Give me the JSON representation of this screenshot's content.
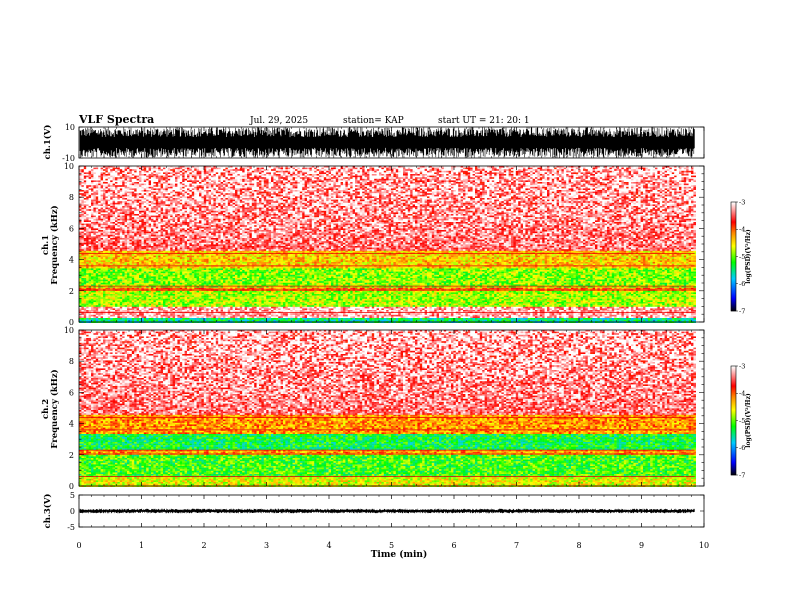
{
  "header": {
    "title": "VLF Spectra",
    "date": "Jul. 29, 2025",
    "station": "station= KAP",
    "start": "start UT =  21: 20: 1"
  },
  "colors": {
    "palette": [
      "#ffffff",
      "#ff0000",
      "#ff8800",
      "#ffff00",
      "#00ff00",
      "#00ccff",
      "#0000ff",
      "#000000"
    ],
    "trace": "#000000"
  },
  "chart_data": [
    {
      "type": "line",
      "name": "ch1-waveform",
      "ylabel": "ch.1(V)",
      "ylim": [
        -10,
        10
      ],
      "yticks": [
        "10",
        "-10"
      ],
      "description_values": {
        "amplitude_range_v": [
          -10,
          10
        ],
        "typical_envelope_v": [
          -7,
          10
        ]
      }
    },
    {
      "type": "heatmap",
      "name": "ch1-spectrogram",
      "ylabel_top": "ch.1",
      "ylabel_bottom": "Frequency (kHz)",
      "ylim": [
        0,
        10
      ],
      "yticks": [
        "0",
        "2",
        "4",
        "6",
        "8",
        "10"
      ],
      "colorbar": {
        "label": "log(PSD)(V²/Hz)",
        "ticks": [
          "-3",
          "-4",
          "-5",
          "-6",
          "-7"
        ],
        "range": [
          -7,
          -3
        ]
      },
      "bands_khz": [
        {
          "from": 0,
          "to": 0.3,
          "level": -5.5
        },
        {
          "from": 1.0,
          "to": 2.0,
          "level": -4.8
        },
        {
          "from": 2.0,
          "to": 2.3,
          "level": -4.0
        },
        {
          "from": 2.3,
          "to": 3.5,
          "level": -4.9
        },
        {
          "from": 3.5,
          "to": 4.6,
          "level": -4.4
        },
        {
          "from": 4.6,
          "to": 10,
          "level": -3.4
        }
      ]
    },
    {
      "type": "heatmap",
      "name": "ch2-spectrogram",
      "ylabel_top": "ch.2",
      "ylabel_bottom": "Frequency (kHz)",
      "ylim": [
        0,
        10
      ],
      "yticks": [
        "0",
        "2",
        "4",
        "6",
        "8",
        "10"
      ],
      "colorbar": {
        "label": "log(PSD)(V²/Hz)",
        "ticks": [
          "-3",
          "-4",
          "-5",
          "-6",
          "-7"
        ],
        "range": [
          -7,
          -3
        ]
      },
      "bands_khz": [
        {
          "from": 0,
          "to": 0.6,
          "level": -4.6
        },
        {
          "from": 0.6,
          "to": 2.0,
          "level": -5.1
        },
        {
          "from": 2.0,
          "to": 2.4,
          "level": -4.2
        },
        {
          "from": 2.4,
          "to": 3.4,
          "level": -5.3
        },
        {
          "from": 3.4,
          "to": 4.6,
          "level": -4.2
        },
        {
          "from": 4.6,
          "to": 10,
          "level": -3.4
        }
      ]
    },
    {
      "type": "line",
      "name": "ch3-waveform",
      "ylabel": "ch.3(V)",
      "ylim": [
        -5,
        5
      ],
      "yticks": [
        "5",
        "0",
        "-5"
      ],
      "description_values": {
        "amplitude_range_v": [
          -5,
          5
        ],
        "typical_envelope_v": [
          -0.6,
          0.6
        ]
      }
    }
  ],
  "xaxis": {
    "label": "Time (min)",
    "xlim": [
      0,
      10
    ],
    "ticks": [
      "0",
      "1",
      "2",
      "3",
      "4",
      "5",
      "6",
      "7",
      "8",
      "9",
      "10"
    ],
    "data_end_min": 9.85
  }
}
